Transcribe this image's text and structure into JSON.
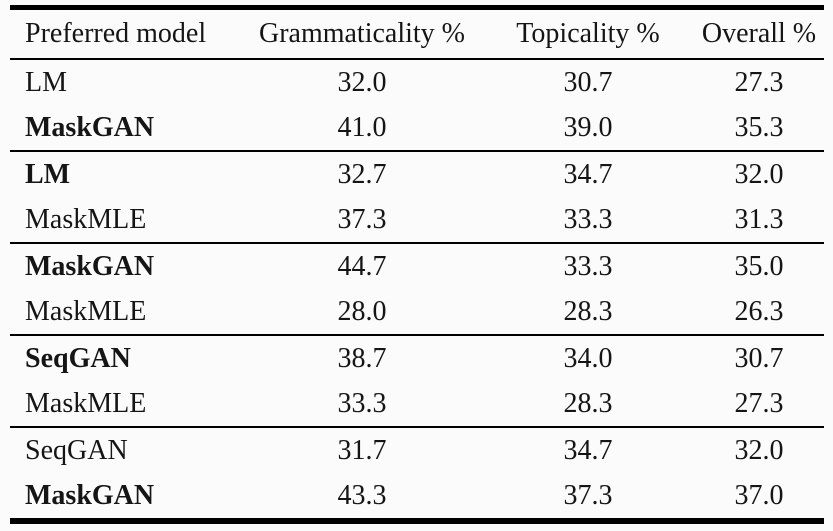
{
  "colors": {
    "background": "#fbfbfb",
    "rule": "#000000",
    "text": "#151515"
  },
  "table": {
    "headers": [
      "Preferred model",
      "Grammaticality %",
      "Topicality %",
      "Overall %"
    ],
    "groups": [
      {
        "rows": [
          {
            "model": "LM",
            "bold": false,
            "values": [
              "32.0",
              "30.7",
              "27.3"
            ]
          },
          {
            "model": "MaskGAN",
            "bold": true,
            "values": [
              "41.0",
              "39.0",
              "35.3"
            ]
          }
        ]
      },
      {
        "rows": [
          {
            "model": "LM",
            "bold": true,
            "values": [
              "32.7",
              "34.7",
              "32.0"
            ]
          },
          {
            "model": "MaskMLE",
            "bold": false,
            "values": [
              "37.3",
              "33.3",
              "31.3"
            ]
          }
        ]
      },
      {
        "rows": [
          {
            "model": "MaskGAN",
            "bold": true,
            "values": [
              "44.7",
              "33.3",
              "35.0"
            ]
          },
          {
            "model": "MaskMLE",
            "bold": false,
            "values": [
              "28.0",
              "28.3",
              "26.3"
            ]
          }
        ]
      },
      {
        "rows": [
          {
            "model": "SeqGAN",
            "bold": true,
            "values": [
              "38.7",
              "34.0",
              "30.7"
            ]
          },
          {
            "model": "MaskMLE",
            "bold": false,
            "values": [
              "33.3",
              "28.3",
              "27.3"
            ]
          }
        ]
      },
      {
        "rows": [
          {
            "model": "SeqGAN",
            "bold": false,
            "values": [
              "31.7",
              "34.7",
              "32.0"
            ]
          },
          {
            "model": "MaskGAN",
            "bold": true,
            "values": [
              "43.3",
              "37.3",
              "37.0"
            ]
          }
        ]
      }
    ]
  }
}
